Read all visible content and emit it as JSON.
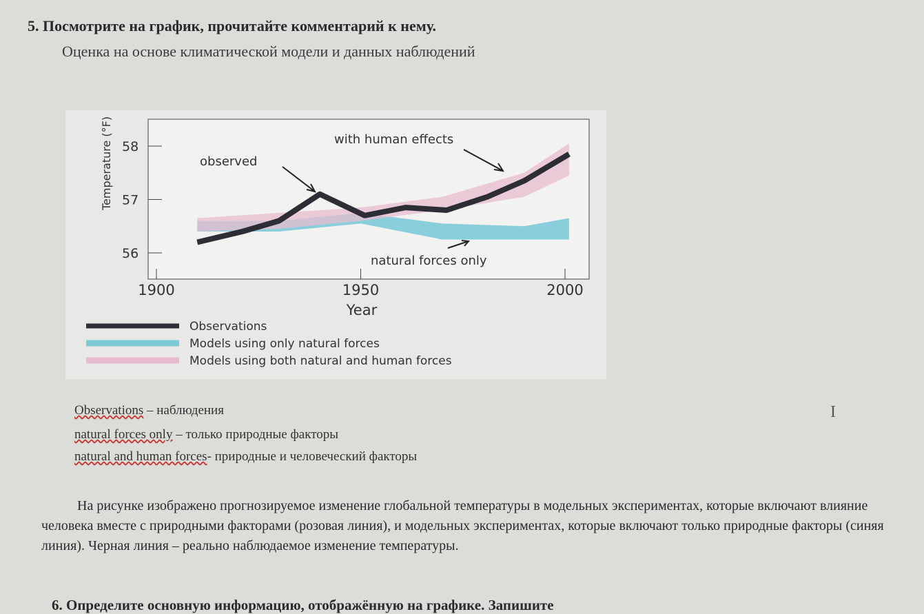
{
  "task5": {
    "heading": "5. Посмотрите на график, прочитайте комментарий к нему.",
    "subtitle": "Оценка на основе климатической модели и данных наблюдений"
  },
  "chart_data": {
    "type": "line",
    "xlabel": "Year",
    "ylabel": "Temperature (°F)",
    "xlim": [
      1900,
      2005
    ],
    "ylim": [
      55.8,
      58.2
    ],
    "x_ticks": [
      "1900",
      "1950",
      "2000"
    ],
    "y_ticks": [
      "56",
      "57",
      "58"
    ],
    "annotations": [
      "with human effects",
      "observed",
      "natural forces only"
    ],
    "legend": [
      "Observations",
      "Models using only natural forces",
      "Models using both natural and human forces"
    ],
    "series": [
      {
        "name": "Observations",
        "color": "#2d2d36",
        "x": [
          1910,
          1921,
          1930,
          1940,
          1951,
          1961,
          1971,
          1981,
          1990,
          2001
        ],
        "y": [
          56.2,
          56.4,
          56.6,
          57.1,
          56.7,
          56.85,
          56.8,
          57.05,
          57.35,
          57.85
        ]
      },
      {
        "name": "Models using only natural forces",
        "color": "#7ccbd8",
        "x": [
          1910,
          1930,
          1950,
          1970,
          1990,
          2001
        ],
        "low": [
          56.4,
          56.4,
          56.55,
          56.25,
          56.25,
          56.25
        ],
        "high": [
          56.6,
          56.6,
          56.75,
          56.55,
          56.5,
          56.65
        ]
      },
      {
        "name": "Models using both natural and human forces",
        "color": "#e8bcd0",
        "x": [
          1910,
          1930,
          1950,
          1970,
          1990,
          2001
        ],
        "low": [
          56.4,
          56.45,
          56.6,
          56.8,
          57.05,
          57.45
        ],
        "high": [
          56.65,
          56.75,
          56.85,
          57.05,
          57.5,
          58.05
        ]
      }
    ]
  },
  "glossary": [
    {
      "term": "Observations",
      "translation": " – наблюдения"
    },
    {
      "term": "natural forces only",
      "translation": " – только природные факторы"
    },
    {
      "term": "natural and human forces",
      "translation": "- природные и человеческий факторы"
    }
  ],
  "paragraph": "На рисунке изображено прогнозируемое изменение глобальной температуры в модельных экспериментах, которые включают влияние человека вместе с природными факторами (розовая линия), и модельных экспериментах, которые включают только природные факторы (синяя линия). Черная линия – реально наблюдаемое изменение температуры.",
  "task6": "6. Определите основную информацию, отображённую на графике. Запишите"
}
